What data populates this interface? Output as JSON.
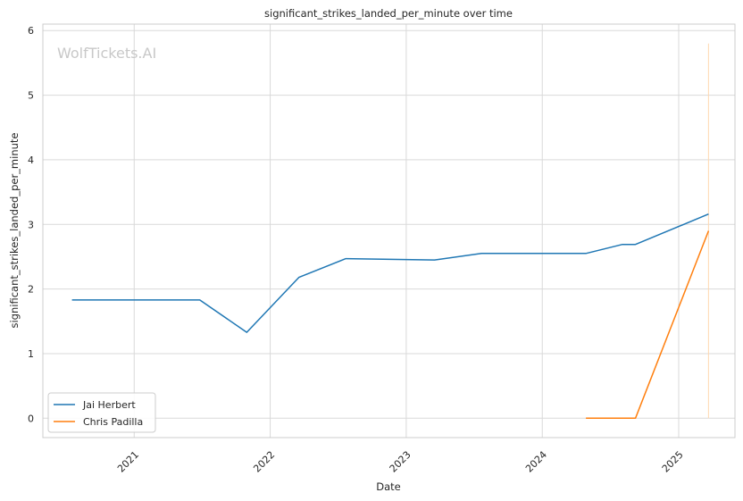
{
  "chart_data": {
    "type": "line",
    "title": "significant_strikes_landed_per_minute over time",
    "xlabel": "Date",
    "ylabel": "significant_strikes_landed_per_minute",
    "watermark": "WolfTickets.AI",
    "xlim": [
      "2020-05-01",
      "2025-06-01"
    ],
    "ylim": [
      -0.3,
      6.1
    ],
    "x_ticks": [
      "2021-01-01",
      "2022-01-01",
      "2023-01-01",
      "2024-01-01",
      "2025-01-01"
    ],
    "x_tick_labels": [
      "2021",
      "2022",
      "2023",
      "2024",
      "2025"
    ],
    "y_ticks": [
      0,
      1,
      2,
      3,
      4,
      5,
      6
    ],
    "grid": true,
    "legend_position": "lower-left",
    "series": [
      {
        "name": "Jai Herbert",
        "color": "#1f77b4",
        "points": [
          {
            "x": "2020-07-18",
            "y": 1.83
          },
          {
            "x": "2021-06-26",
            "y": 1.83
          },
          {
            "x": "2021-10-30",
            "y": 1.33
          },
          {
            "x": "2022-03-19",
            "y": 2.18
          },
          {
            "x": "2022-07-23",
            "y": 2.47
          },
          {
            "x": "2023-03-18",
            "y": 2.45
          },
          {
            "x": "2023-07-22",
            "y": 2.55
          },
          {
            "x": "2024-04-27",
            "y": 2.55
          },
          {
            "x": "2024-08-03",
            "y": 2.69
          },
          {
            "x": "2024-09-07",
            "y": 2.69
          },
          {
            "x": "2025-03-22",
            "y": 3.16
          }
        ]
      },
      {
        "name": "Chris Padilla",
        "color": "#ff7f0e",
        "points": [
          {
            "x": "2024-04-27",
            "y": 0.0
          },
          {
            "x": "2024-09-07",
            "y": 0.0
          },
          {
            "x": "2025-03-22",
            "y": 2.9
          }
        ]
      }
    ],
    "annotations": [
      {
        "type": "vertical-line",
        "x": "2025-03-22",
        "y_from": 0,
        "y_to": 5.8,
        "color": "#ffd8b0"
      }
    ]
  }
}
